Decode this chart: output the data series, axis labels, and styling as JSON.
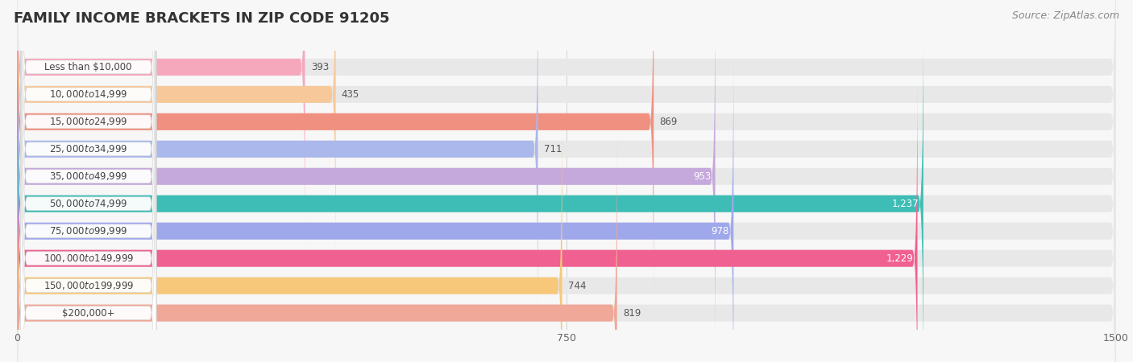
{
  "title": "FAMILY INCOME BRACKETS IN ZIP CODE 91205",
  "source": "Source: ZipAtlas.com",
  "categories": [
    "Less than $10,000",
    "$10,000 to $14,999",
    "$15,000 to $24,999",
    "$25,000 to $34,999",
    "$35,000 to $49,999",
    "$50,000 to $74,999",
    "$75,000 to $99,999",
    "$100,000 to $149,999",
    "$150,000 to $199,999",
    "$200,000+"
  ],
  "values": [
    393,
    435,
    869,
    711,
    953,
    1237,
    978,
    1229,
    744,
    819
  ],
  "bar_colors": [
    "#f5a8bc",
    "#f7c99a",
    "#f09080",
    "#aab8ec",
    "#c5a8dc",
    "#3dbdb5",
    "#a0a8ec",
    "#f06090",
    "#f7c87a",
    "#f0a898"
  ],
  "value_inside": [
    false,
    false,
    false,
    false,
    true,
    true,
    true,
    true,
    false,
    false
  ],
  "xlim_max": 1500,
  "xticks": [
    0,
    750,
    1500
  ],
  "bg_color": "#f7f7f7",
  "bar_bg_color": "#e8e8e8",
  "title_fontsize": 13,
  "source_fontsize": 9,
  "value_fontsize": 8.5,
  "label_fontsize": 8.5
}
